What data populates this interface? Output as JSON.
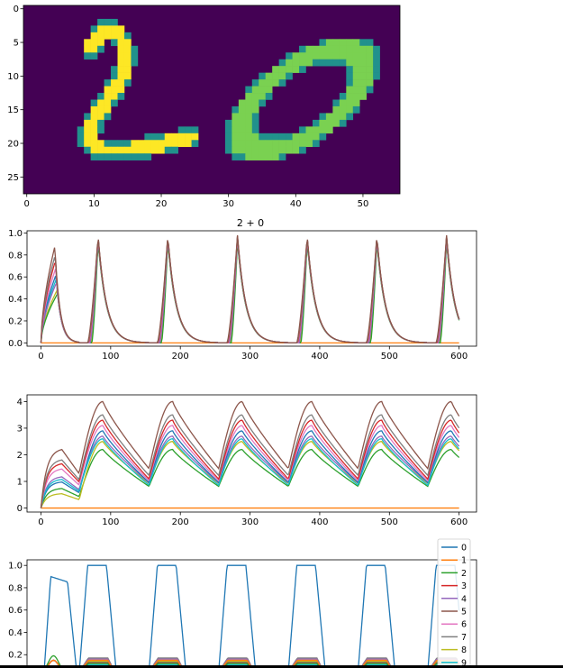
{
  "colors": {
    "viridis_low": "#440154",
    "viridis_mid": "#21918c",
    "viridis_high": "#fde725",
    "viridis_green": "#7ad151",
    "series": [
      "#1f77b4",
      "#ff7f0e",
      "#2ca02c",
      "#d62728",
      "#9467bd",
      "#8c564b",
      "#e377c2",
      "#7f7f7f",
      "#bcbd22",
      "#17becf"
    ]
  },
  "chart_data": [
    {
      "type": "heatmap",
      "description_visible": "image of digits",
      "x_ticks": [
        "0",
        "10",
        "20",
        "30",
        "40",
        "50"
      ],
      "y_ticks": [
        "0",
        "5",
        "10",
        "15",
        "20",
        "25"
      ],
      "xlim": [
        0,
        56
      ],
      "ylim": [
        28,
        0
      ],
      "colormap": "viridis"
    },
    {
      "type": "line",
      "title": "2 + 0",
      "x_ticks": [
        "0",
        "100",
        "200",
        "300",
        "400",
        "500",
        "600"
      ],
      "y_ticks": [
        "0.0",
        "0.2",
        "0.4",
        "0.6",
        "0.8",
        "1.0"
      ],
      "xlim": [
        -20,
        625
      ],
      "ylim": [
        -0.03,
        1.02
      ],
      "period": 100,
      "series_peaks": [
        0.95,
        0.0,
        0.92,
        0.97,
        0.96,
        0.98,
        0.95,
        0.97,
        0.94,
        0.96
      ]
    },
    {
      "type": "line",
      "title": "",
      "x_ticks": [
        "0",
        "100",
        "200",
        "300",
        "400",
        "500",
        "600"
      ],
      "y_ticks": [
        "0",
        "1",
        "2",
        "3",
        "4"
      ],
      "xlim": [
        -20,
        625
      ],
      "ylim": [
        -0.15,
        4.25
      ],
      "period": 100,
      "series_peaks": [
        2.9,
        0.0,
        2.2,
        3.3,
        2.7,
        4.0,
        3.1,
        3.5,
        2.5,
        2.6
      ]
    },
    {
      "type": "line",
      "title": "",
      "x_ticks": [],
      "y_ticks": [
        "0.2",
        "0.4",
        "0.6",
        "0.8",
        "1.0"
      ],
      "xlim": [
        -20,
        625
      ],
      "ylim": [
        0.0,
        1.05
      ],
      "legend": [
        "0",
        "1",
        "2",
        "3",
        "4",
        "5",
        "6",
        "7",
        "8",
        "9"
      ],
      "legend_placement": "right"
    }
  ]
}
